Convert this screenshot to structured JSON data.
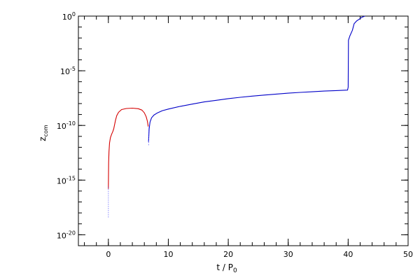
{
  "chart_data": {
    "type": "line",
    "xlabel_main": "t / P",
    "xlabel_sub": "0",
    "ylabel_main": "z",
    "ylabel_sub": "com",
    "xlim": [
      -5,
      50
    ],
    "ylim_log10": [
      -21,
      0
    ],
    "y_scale": "log",
    "grid": false,
    "x_major_ticks": [
      0,
      10,
      20,
      30,
      40,
      50
    ],
    "x_minor_step": 2,
    "y_major_ticks": [
      {
        "exp": -20,
        "base": "10",
        "exponent": "-20"
      },
      {
        "exp": -15,
        "base": "10",
        "exponent": "-15"
      },
      {
        "exp": -10,
        "base": "10",
        "exponent": "-10"
      },
      {
        "exp": -5,
        "base": "10",
        "exponent": "-5"
      },
      {
        "exp": 0,
        "base": "10",
        "exponent": "0"
      }
    ],
    "series": [
      {
        "color": "#d40000",
        "points_log10": [
          [
            0.0,
            -15.8
          ],
          [
            0.02,
            -14.6
          ],
          [
            0.05,
            -13.4
          ],
          [
            0.1,
            -12.4
          ],
          [
            0.2,
            -11.6
          ],
          [
            0.35,
            -11.1
          ],
          [
            0.55,
            -10.8
          ],
          [
            0.75,
            -10.55
          ],
          [
            0.9,
            -10.3
          ],
          [
            1.05,
            -9.9
          ],
          [
            1.2,
            -9.5
          ],
          [
            1.4,
            -9.1
          ],
          [
            1.7,
            -8.8
          ],
          [
            2.2,
            -8.55
          ],
          [
            3.0,
            -8.45
          ],
          [
            4.0,
            -8.42
          ],
          [
            5.0,
            -8.47
          ],
          [
            5.6,
            -8.6
          ],
          [
            6.0,
            -8.85
          ],
          [
            6.3,
            -9.2
          ],
          [
            6.5,
            -9.6
          ],
          [
            6.65,
            -10.1
          ]
        ]
      },
      {
        "color": "#0000c8",
        "points_log10": [
          [
            6.7,
            -11.5
          ],
          [
            6.8,
            -10.3
          ],
          [
            6.95,
            -9.7
          ],
          [
            7.2,
            -9.3
          ],
          [
            7.6,
            -9.05
          ],
          [
            8.2,
            -8.85
          ],
          [
            9.0,
            -8.65
          ],
          [
            10.0,
            -8.5
          ],
          [
            12.0,
            -8.25
          ],
          [
            14.0,
            -8.05
          ],
          [
            16.0,
            -7.85
          ],
          [
            18.0,
            -7.7
          ],
          [
            20.0,
            -7.55
          ],
          [
            22.0,
            -7.43
          ],
          [
            24.0,
            -7.32
          ],
          [
            26.0,
            -7.22
          ],
          [
            28.0,
            -7.13
          ],
          [
            30.0,
            -7.05
          ],
          [
            32.0,
            -6.98
          ],
          [
            34.0,
            -6.92
          ],
          [
            36.0,
            -6.86
          ],
          [
            38.0,
            -6.81
          ],
          [
            39.9,
            -6.77
          ],
          [
            40.0,
            -6.5
          ],
          [
            40.05,
            -2.2
          ],
          [
            40.3,
            -1.8
          ],
          [
            40.7,
            -1.3
          ],
          [
            41.0,
            -0.7
          ],
          [
            41.4,
            -0.45
          ],
          [
            41.8,
            -0.3
          ],
          [
            42.3,
            -0.1
          ],
          [
            42.8,
            0.0
          ]
        ]
      }
    ],
    "spike_markers": [
      {
        "color": "#5050ff",
        "x": 0.0,
        "from_log10": -18.4,
        "to_log10": -15.5
      },
      {
        "color": "#5050ff",
        "x": 6.72,
        "from_log10": -11.8,
        "to_log10": -10.2
      }
    ]
  }
}
